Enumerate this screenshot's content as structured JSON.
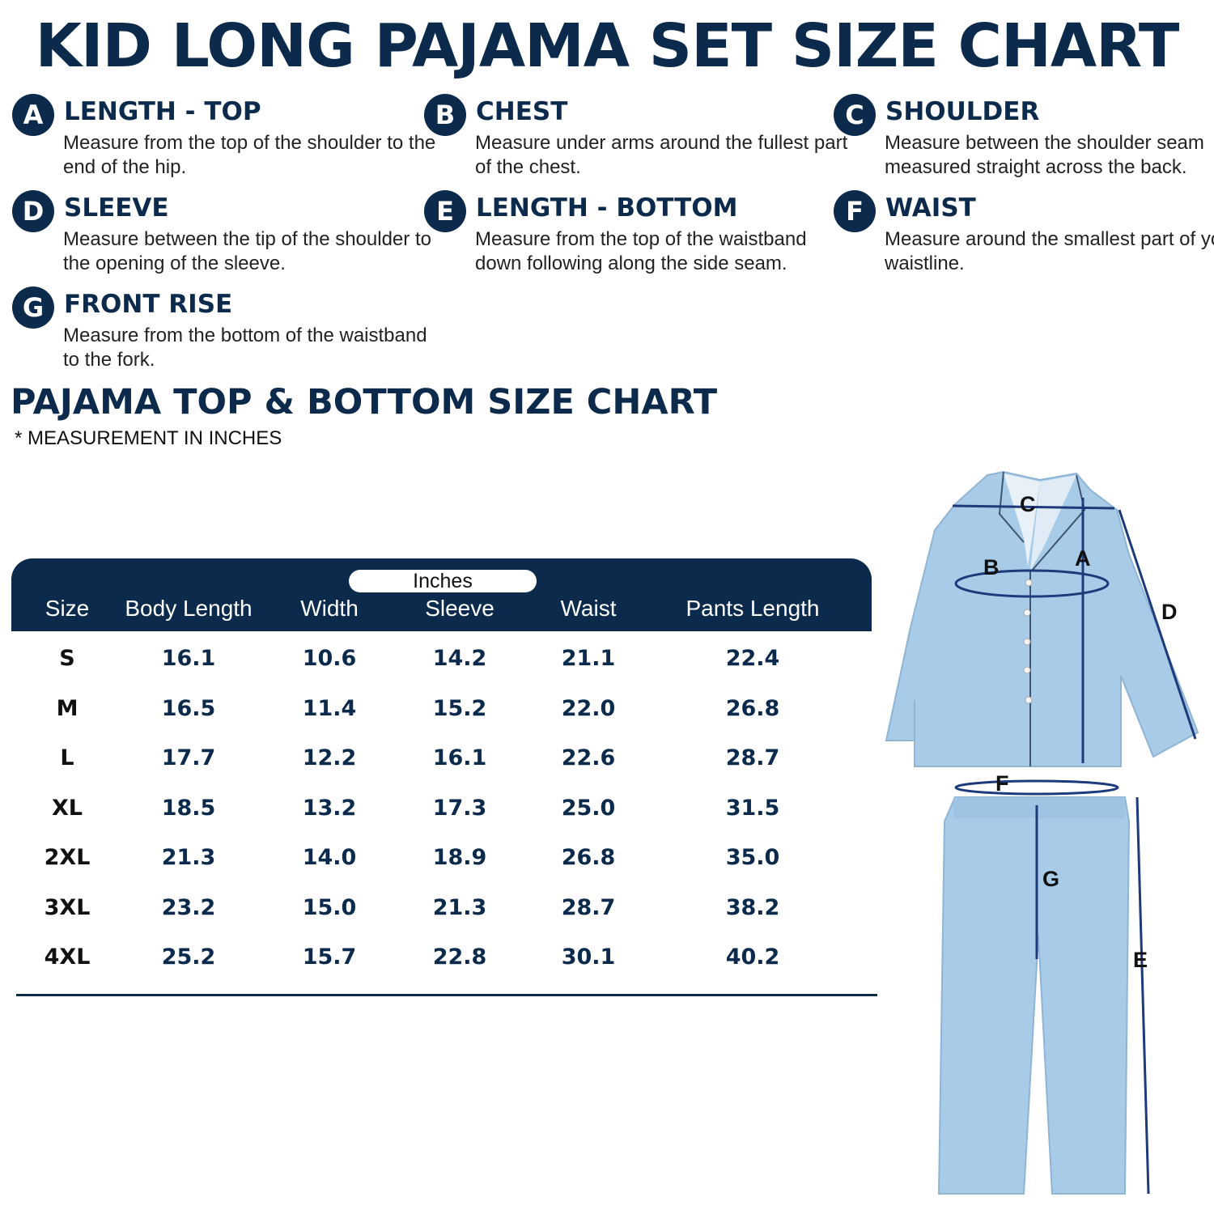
{
  "title": "KID LONG PAJAMA SET SIZE CHART",
  "measurements": [
    {
      "letter": "A",
      "heading": "LENGTH - TOP",
      "description": "Measure from the top of the shoulder to the end of the hip."
    },
    {
      "letter": "B",
      "heading": "CHEST",
      "description": "Measure under arms around the fullest part of the chest."
    },
    {
      "letter": "C",
      "heading": "SHOULDER",
      "description": "Measure between the shoulder seam measured straight across the back."
    },
    {
      "letter": "D",
      "heading": "SLEEVE",
      "description": "Measure between the tip of the shoulder to the opening of the sleeve."
    },
    {
      "letter": "E",
      "heading": "LENGTH - BOTTOM",
      "description": "Measure from the top of the waistband down following along the side seam."
    },
    {
      "letter": "F",
      "heading": "WAIST",
      "description": "Measure around the smallest part of your waistline."
    },
    {
      "letter": "G",
      "heading": "FRONT RISE",
      "description": "Measure from the bottom of the waistband to the fork."
    }
  ],
  "size_chart": {
    "title": "PAJAMA TOP & BOTTOM SIZE CHART",
    "note": "* MEASUREMENT IN INCHES",
    "unit_label": "Inches",
    "columns": [
      "Size",
      "Body Length",
      "Width",
      "Sleeve",
      "Waist",
      "Pants Length"
    ],
    "rows": [
      [
        "S",
        "16.1",
        "10.6",
        "14.2",
        "21.1",
        "22.4"
      ],
      [
        "M",
        "16.5",
        "11.4",
        "15.2",
        "22.0",
        "26.8"
      ],
      [
        "L",
        "17.7",
        "12.2",
        "16.1",
        "22.6",
        "28.7"
      ],
      [
        "XL",
        "18.5",
        "13.2",
        "17.3",
        "25.0",
        "31.5"
      ],
      [
        "2XL",
        "21.3",
        "14.0",
        "18.9",
        "26.8",
        "35.0"
      ],
      [
        "3XL",
        "23.2",
        "15.0",
        "21.3",
        "28.7",
        "38.2"
      ],
      [
        "4XL",
        "25.2",
        "15.7",
        "22.8",
        "30.1",
        "40.2"
      ]
    ]
  },
  "diagram_labels": {
    "a": "A",
    "b": "B",
    "c": "C",
    "d": "D",
    "e": "E",
    "f": "F",
    "g": "G"
  },
  "colors": {
    "navy": "#0c2a4b",
    "garment": "#a8cbe8"
  }
}
